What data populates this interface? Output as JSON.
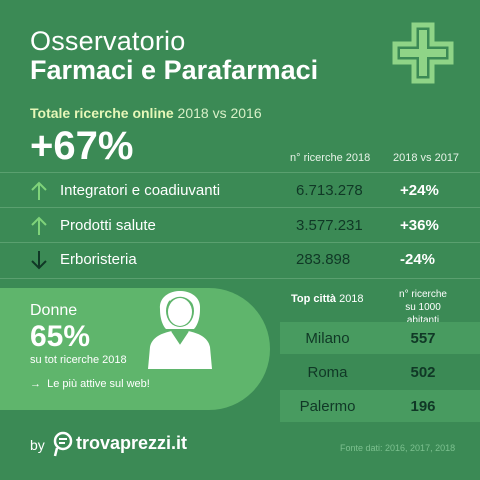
{
  "header": {
    "title_line1": "Osservatorio",
    "title_line2": "Farmaci e Parafarmaci",
    "icon": "pharmacy-cross-icon"
  },
  "summary": {
    "label_bold": "Totale ricerche online",
    "label_rest": " 2018 vs 2016",
    "value": "+67%"
  },
  "table": {
    "col_searches": "n° ricerche 2018",
    "col_change": "2018 vs 2017",
    "rows": [
      {
        "trend": "up",
        "label": "Integratori e coadiuvanti",
        "searches": "6.713.278",
        "change": "+24%"
      },
      {
        "trend": "up",
        "label": "Prodotti salute",
        "searches": "3.577.231",
        "change": "+36%"
      },
      {
        "trend": "down",
        "label": "Erboristeria",
        "searches": "283.898",
        "change": "-24%"
      }
    ]
  },
  "women": {
    "label": "Donne",
    "value": "65%",
    "sub": "su tot ricerche 2018",
    "note": "Le più attive sul web!",
    "icon": "woman-icon"
  },
  "top_cities": {
    "title_bold": "Top città",
    "title_rest": " 2018",
    "col_label": "n° ricerche su 1000 abitanti",
    "rows": [
      {
        "city": "Milano",
        "value": "557"
      },
      {
        "city": "Roma",
        "value": "502"
      },
      {
        "city": "Palermo",
        "value": "196"
      }
    ]
  },
  "footer": {
    "by": "by",
    "brand": "trovaprezzi.it",
    "source": "Fonte dati: 2016, 2017, 2018"
  },
  "colors": {
    "background": "#3b8a55",
    "panel": "#5fb56c",
    "accent_arrow_up": "#7fd37a",
    "dark_text": "#103826"
  }
}
